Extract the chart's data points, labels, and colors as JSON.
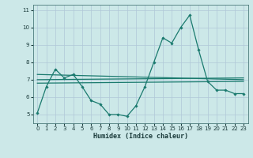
{
  "xlabel": "Humidex (Indice chaleur)",
  "xlim": [
    -0.5,
    23.5
  ],
  "ylim": [
    4.5,
    11.3
  ],
  "yticks": [
    5,
    6,
    7,
    8,
    9,
    10,
    11
  ],
  "xticks": [
    0,
    1,
    2,
    3,
    4,
    5,
    6,
    7,
    8,
    9,
    10,
    11,
    12,
    13,
    14,
    15,
    16,
    17,
    18,
    19,
    20,
    21,
    22,
    23
  ],
  "background_color": "#cce8e8",
  "grid_color": "#b0c8d8",
  "line_color": "#1a7a6e",
  "line_main": {
    "x": [
      0,
      1,
      2,
      3,
      4,
      5,
      6,
      7,
      8,
      9,
      10,
      11,
      12,
      13,
      14,
      15,
      16,
      17,
      18,
      19,
      20,
      21,
      22,
      23
    ],
    "y": [
      5.1,
      6.6,
      7.6,
      7.1,
      7.3,
      6.6,
      5.8,
      5.6,
      5.0,
      5.0,
      4.9,
      5.5,
      6.6,
      8.0,
      9.4,
      9.1,
      10.0,
      10.7,
      8.7,
      6.9,
      6.4,
      6.4,
      6.2,
      6.2
    ]
  },
  "line_trend1": {
    "x": [
      0,
      23
    ],
    "y": [
      7.3,
      7.0
    ]
  },
  "line_trend2": {
    "x": [
      0,
      23
    ],
    "y": [
      6.8,
      6.9
    ]
  },
  "line_trend3": {
    "x": [
      0,
      23
    ],
    "y": [
      7.0,
      7.1
    ]
  }
}
